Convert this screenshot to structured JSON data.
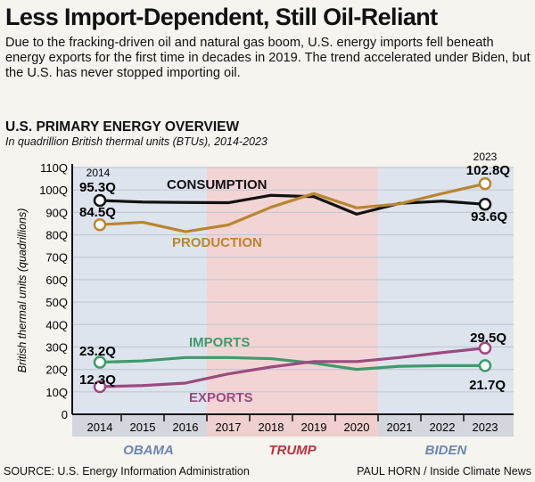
{
  "title": "Less Import-Dependent, Still Oil-Reliant",
  "subtitle": "Due to the fracking-driven oil and natural gas boom, U.S. energy imports fell beneath energy exports for the first time in decades in 2019. The trend accelerated under Biden, but the U.S. has never stopped importing oil.",
  "section_title": "U.S. PRIMARY ENERGY OVERVIEW",
  "section_subtitle": "In quadrillion British thermal units (BTUs), 2014-2023",
  "source": "SOURCE: U.S. Energy Information Administration",
  "credit": "PAUL HORN / Inside Climate News",
  "colors": {
    "background": "#f5f4ee",
    "democrat": "#dde4ee",
    "republican": "#f3d4d4",
    "consumption": "#111111",
    "production": "#b8862f",
    "imports": "#3f9a6a",
    "exports": "#9b4a7f",
    "obama_label": "#6b86b3",
    "trump_label": "#b8323c"
  },
  "chart_data": {
    "type": "line",
    "title": "U.S. PRIMARY ENERGY OVERVIEW",
    "ylabel": "British thermal units (quadrillions)",
    "ylim": [
      0,
      110
    ],
    "yticks": [
      "0",
      "10Q",
      "20Q",
      "30Q",
      "40Q",
      "50Q",
      "60Q",
      "70Q",
      "80Q",
      "90Q",
      "100Q",
      "110Q"
    ],
    "grid": true,
    "categories": [
      "2014",
      "2015",
      "2016",
      "2017",
      "2018",
      "2019",
      "2020",
      "2021",
      "2022",
      "2023"
    ],
    "administrations": [
      {
        "name": "OBAMA",
        "from": "2014",
        "to": "2016",
        "party": "democrat"
      },
      {
        "name": "TRUMP",
        "from": "2017",
        "to": "2020",
        "party": "republican"
      },
      {
        "name": "BIDEN",
        "from": "2021",
        "to": "2023",
        "party": "democrat"
      }
    ],
    "series": [
      {
        "name": "CONSUMPTION",
        "color": "#111111",
        "values": [
          95.3,
          94.6,
          94.4,
          94.3,
          97.6,
          97.0,
          89.2,
          94.0,
          95.0,
          93.6
        ],
        "start_label": "95.3Q",
        "end_label": "93.6Q"
      },
      {
        "name": "PRODUCTION",
        "color": "#b8862f",
        "values": [
          84.5,
          85.6,
          81.4,
          84.4,
          92.3,
          98.4,
          92.0,
          93.8,
          98.4,
          102.8
        ],
        "start_label": "84.5Q",
        "end_label": "102.8Q"
      },
      {
        "name": "IMPORTS",
        "color": "#3f9a6a",
        "values": [
          23.2,
          23.8,
          25.3,
          25.3,
          24.8,
          22.8,
          20.0,
          21.4,
          21.7,
          21.7
        ],
        "start_label": "23.2Q",
        "end_label": "21.7Q"
      },
      {
        "name": "EXPORTS",
        "color": "#9b4a7f",
        "values": [
          12.3,
          12.8,
          13.9,
          18.0,
          21.1,
          23.5,
          23.5,
          25.3,
          27.5,
          29.5
        ],
        "start_label": "12.3Q",
        "end_label": "29.5Q"
      }
    ],
    "annotations": {
      "start_year": "2014",
      "end_year": "2023"
    }
  }
}
